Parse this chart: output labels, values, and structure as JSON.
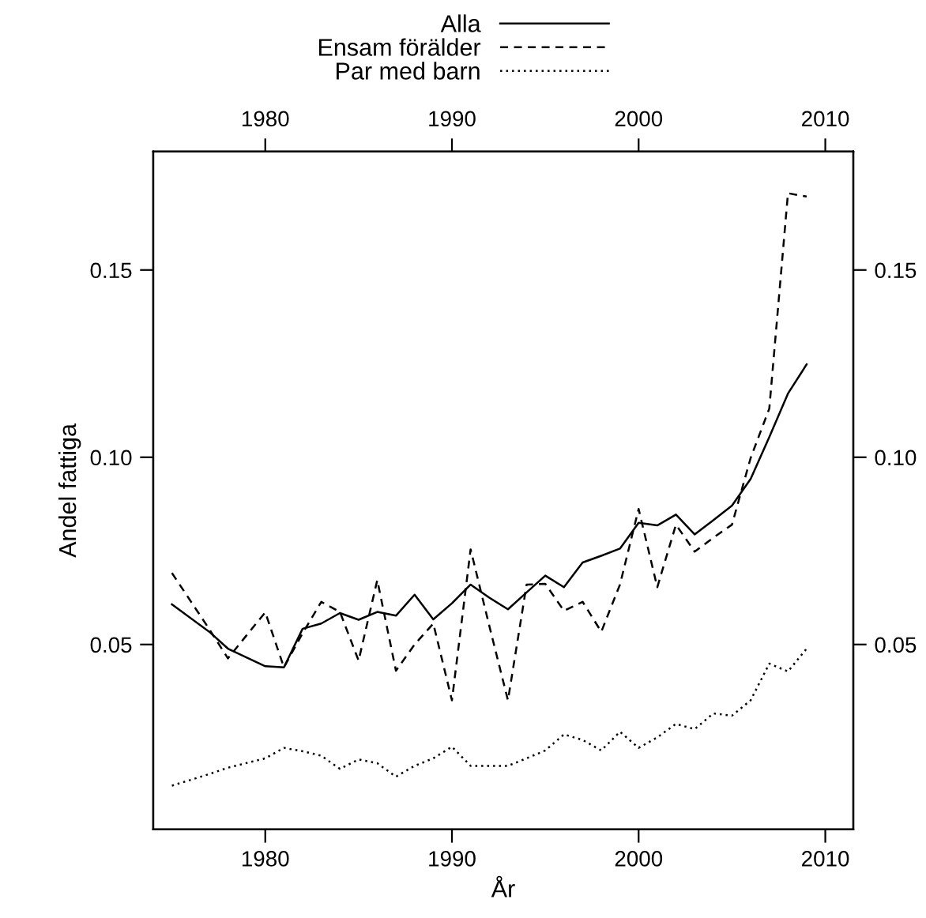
{
  "chart_data": {
    "type": "line",
    "xlabel": "År",
    "ylabel": "Andel fattiga",
    "x": [
      1975,
      1977,
      1978,
      1980,
      1981,
      1982,
      1983,
      1984,
      1985,
      1986,
      1987,
      1988,
      1989,
      1990,
      1991,
      1992,
      1993,
      1994,
      1995,
      1996,
      1997,
      1998,
      1999,
      2000,
      2001,
      2002,
      2003,
      2004,
      2005,
      2006,
      2007,
      2008,
      2009
    ],
    "series": [
      {
        "name": "Alla",
        "color": "#000000",
        "line_style": "solid",
        "values": [
          0.0607,
          0.0534,
          0.0489,
          0.0442,
          0.0439,
          0.0542,
          0.0556,
          0.0584,
          0.0566,
          0.0587,
          0.0577,
          0.0633,
          0.0567,
          0.061,
          0.066,
          0.0625,
          0.0594,
          0.0639,
          0.0684,
          0.0653,
          0.0719,
          0.0737,
          0.0756,
          0.0825,
          0.0818,
          0.0847,
          0.0794,
          0.0832,
          0.0871,
          0.0942,
          0.1054,
          0.117,
          0.1248
        ]
      },
      {
        "name": "Ensam förälder",
        "color": "#000000",
        "line_style": "dashed",
        "values": [
          0.0691,
          0.0541,
          0.0463,
          0.0586,
          0.0439,
          0.053,
          0.0614,
          0.0587,
          0.0457,
          0.0672,
          0.043,
          0.05,
          0.0556,
          0.0351,
          0.0754,
          0.055,
          0.0351,
          0.066,
          0.0662,
          0.059,
          0.0614,
          0.0534,
          0.066,
          0.0862,
          0.0653,
          0.082,
          0.0748,
          0.0785,
          0.082,
          0.0998,
          0.113,
          0.1705,
          0.1696
        ]
      },
      {
        "name": "Par med barn",
        "color": "#000000",
        "line_style": "dotted",
        "values": [
          0.0123,
          0.0154,
          0.0171,
          0.0196,
          0.0224,
          0.0215,
          0.0203,
          0.0168,
          0.0193,
          0.0183,
          0.0147,
          0.0176,
          0.0196,
          0.0227,
          0.0176,
          0.0176,
          0.0176,
          0.0196,
          0.0217,
          0.026,
          0.0245,
          0.0217,
          0.0267,
          0.0224,
          0.0252,
          0.0288,
          0.0274,
          0.0316,
          0.031,
          0.0351,
          0.0449,
          0.0428,
          0.0489
        ]
      }
    ],
    "xlim": [
      1974.0,
      2011.5
    ],
    "xticks": [
      1980,
      1990,
      2000,
      2010
    ],
    "x2lim": [
      1974.0,
      2011.5
    ],
    "x2ticks": [
      1980,
      1990,
      2000,
      2010
    ],
    "ylim": [
      0.0006,
      0.1816
    ],
    "yticks": [
      0.05,
      {
        "value": 0.1,
        "label": "0.10"
      },
      0.15
    ],
    "y2lim": [
      0.0006,
      0.1816
    ],
    "y2ticks": [
      0.05,
      {
        "value": 0.1,
        "label": "0.10"
      },
      0.15
    ],
    "grid": false,
    "legend": "top",
    "marker": "none"
  }
}
